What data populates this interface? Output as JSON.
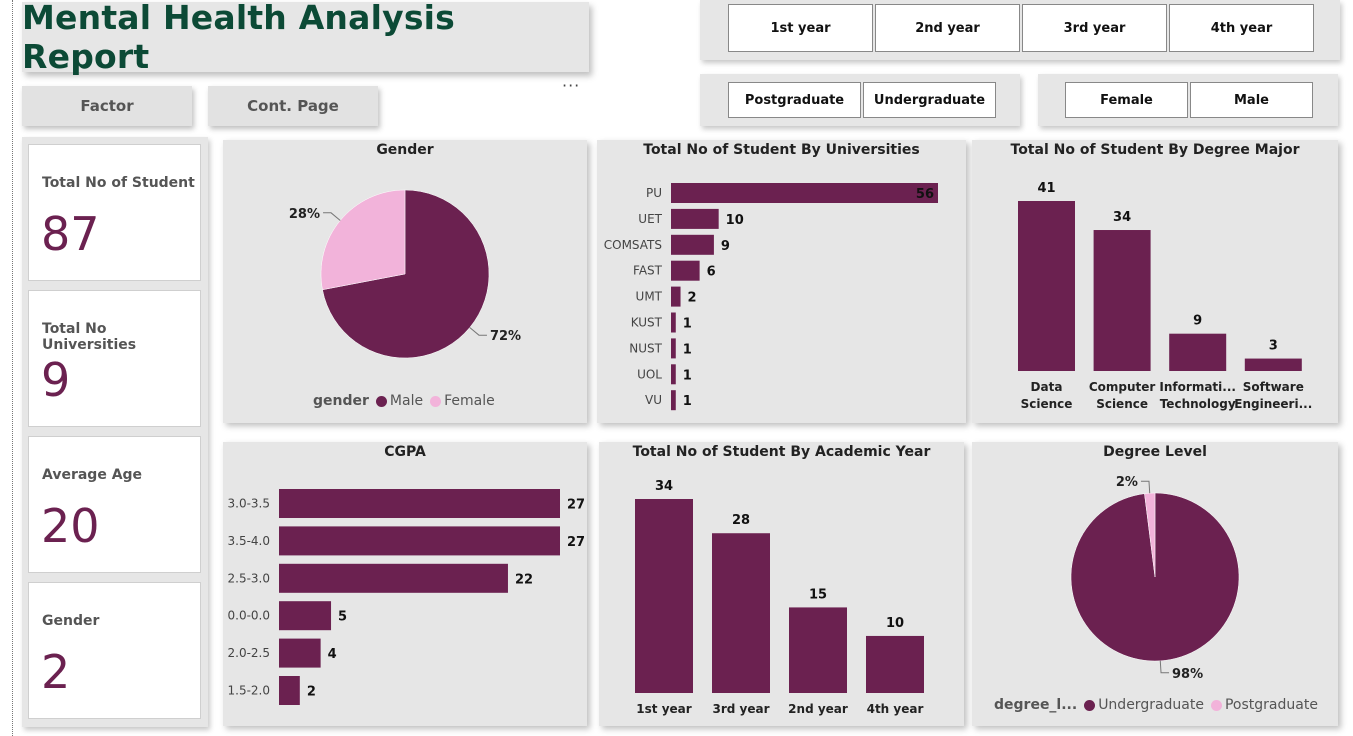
{
  "report_title": "Mental Health Analysis Report",
  "more_options": "···",
  "nav": {
    "factor": "Factor",
    "cont_page": "Cont. Page"
  },
  "slicers": {
    "year": [
      "1st year",
      "2nd year",
      "3rd year",
      "4th year"
    ],
    "degree": [
      "Postgraduate",
      "Undergraduate"
    ],
    "gender": [
      "Female",
      "Male"
    ]
  },
  "kpis": [
    {
      "label": "Total No of Student",
      "value": "87"
    },
    {
      "label": "Total No Universities",
      "value": "9"
    },
    {
      "label": "Average Age",
      "value": "20"
    },
    {
      "label": "Gender",
      "value": "2"
    }
  ],
  "colors": {
    "primary": "#6b2150",
    "secondary": "#f2b3da",
    "title": "#0c4a36",
    "panel": "#e6e6e6"
  },
  "chart_data": [
    {
      "id": "gender",
      "type": "pie",
      "title": "Gender",
      "legend_title": "gender",
      "categories": [
        "Male",
        "Female"
      ],
      "values": [
        72,
        28
      ],
      "labels": [
        "72%",
        "28%"
      ],
      "colors": [
        "#6b2150",
        "#f2b3da"
      ]
    },
    {
      "id": "universities",
      "type": "bar",
      "orientation": "horizontal",
      "title": "Total No of Student By Universities",
      "categories": [
        "PU",
        "UET",
        "COMSATS",
        "FAST",
        "UMT",
        "KUST",
        "NUST",
        "UOL",
        "VU"
      ],
      "values": [
        56,
        10,
        9,
        6,
        2,
        1,
        1,
        1,
        1
      ]
    },
    {
      "id": "degree_major",
      "type": "bar",
      "orientation": "vertical",
      "title": "Total No of Student By Degree Major",
      "categories": [
        [
          "Data",
          "Science"
        ],
        [
          "Computer",
          "Science"
        ],
        [
          "Informati...",
          "Technology"
        ],
        [
          "Software",
          "Engineeri..."
        ]
      ],
      "values": [
        41,
        34,
        9,
        3
      ]
    },
    {
      "id": "cgpa",
      "type": "bar",
      "orientation": "horizontal",
      "title": "CGPA",
      "categories": [
        "3.0-3.5",
        "3.5-4.0",
        "2.5-3.0",
        "0.0-0.0",
        "2.0-2.5",
        "1.5-2.0"
      ],
      "values": [
        27,
        27,
        22,
        5,
        4,
        2
      ]
    },
    {
      "id": "academic_year",
      "type": "bar",
      "orientation": "vertical",
      "title": "Total No of Student By Academic Year",
      "categories": [
        [
          "1st year"
        ],
        [
          "3rd year"
        ],
        [
          "2nd year"
        ],
        [
          "4th year"
        ]
      ],
      "values": [
        34,
        28,
        15,
        10
      ]
    },
    {
      "id": "degree_level",
      "type": "pie",
      "title": "Degree Level",
      "legend_title": "degree_l...",
      "categories": [
        "Undergraduate",
        "Postgraduate"
      ],
      "values": [
        98,
        2
      ],
      "labels": [
        "98%",
        "2%"
      ],
      "colors": [
        "#6b2150",
        "#f2b3da"
      ]
    }
  ]
}
